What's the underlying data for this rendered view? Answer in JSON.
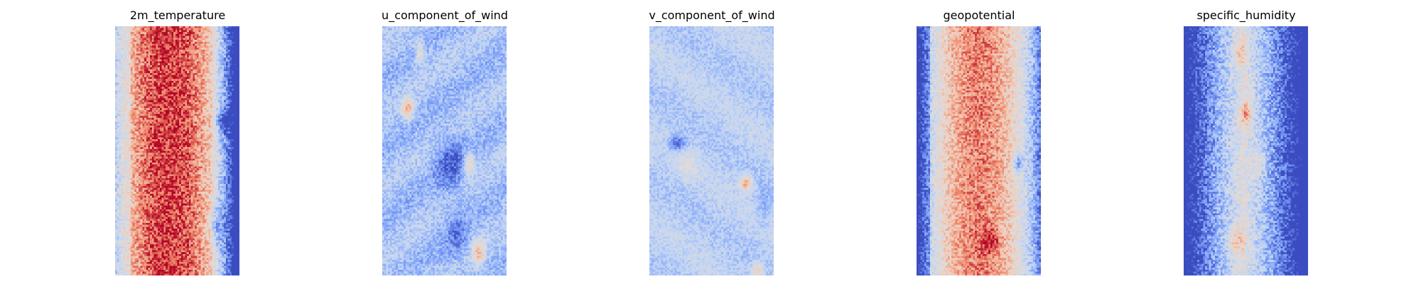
{
  "figure": {
    "panels": [
      {
        "title": "2m_temperature",
        "pattern": "warm-core",
        "seed": 11
      },
      {
        "title": "u_component_of_wind",
        "pattern": "cool-streaks",
        "seed": 23
      },
      {
        "title": "v_component_of_wind",
        "pattern": "pale-cool",
        "seed": 37
      },
      {
        "title": "geopotential",
        "pattern": "warm-band",
        "seed": 41
      },
      {
        "title": "specific_humidity",
        "pattern": "cold-edges",
        "seed": 53
      }
    ]
  },
  "chart_data": {
    "type": "heatmap",
    "colormap": "coolwarm",
    "colormap_stops": [
      "#3b4cc0",
      "#7b9ff9",
      "#c0d4f5",
      "#dddcdc",
      "#f2cbb7",
      "#ee8468",
      "#b40426"
    ],
    "axes_visible": false,
    "panels": [
      {
        "title": "2m_temperature"
      },
      {
        "title": "u_component_of_wind"
      },
      {
        "title": "v_component_of_wind"
      },
      {
        "title": "geopotential"
      },
      {
        "title": "specific_humidity"
      }
    ]
  }
}
